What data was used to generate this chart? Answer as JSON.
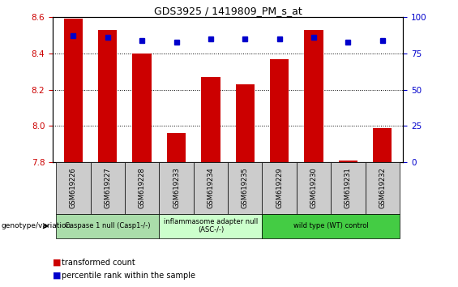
{
  "title": "GDS3925 / 1419809_PM_s_at",
  "samples": [
    "GSM619226",
    "GSM619227",
    "GSM619228",
    "GSM619233",
    "GSM619234",
    "GSM619235",
    "GSM619229",
    "GSM619230",
    "GSM619231",
    "GSM619232"
  ],
  "bar_values": [
    8.59,
    8.53,
    8.4,
    7.96,
    8.27,
    8.23,
    8.37,
    8.53,
    7.81,
    7.99
  ],
  "percentile_values": [
    87,
    86,
    84,
    83,
    85,
    85,
    85,
    86,
    83,
    84
  ],
  "bar_bottom": 7.8,
  "ylim_left": [
    7.8,
    8.6
  ],
  "ylim_right": [
    0,
    100
  ],
  "yticks_left": [
    7.8,
    8.0,
    8.2,
    8.4,
    8.6
  ],
  "yticks_right": [
    0,
    25,
    50,
    75,
    100
  ],
  "bar_color": "#cc0000",
  "percentile_color": "#0000cc",
  "groups": [
    {
      "label": "Caspase 1 null (Casp1-/-)",
      "start": 0,
      "end": 3,
      "color": "#aaddaa"
    },
    {
      "label": "inflammasome adapter null\n(ASC-/-)",
      "start": 3,
      "end": 6,
      "color": "#ccffcc"
    },
    {
      "label": "wild type (WT) control",
      "start": 6,
      "end": 10,
      "color": "#44cc44"
    }
  ],
  "legend_label_bar": "transformed count",
  "legend_label_pct": "percentile rank within the sample",
  "genotype_label": "genotype/variation",
  "tick_label_color_left": "#cc0000",
  "tick_label_color_right": "#0000cc",
  "sample_box_color": "#cccccc",
  "bar_width": 0.55
}
